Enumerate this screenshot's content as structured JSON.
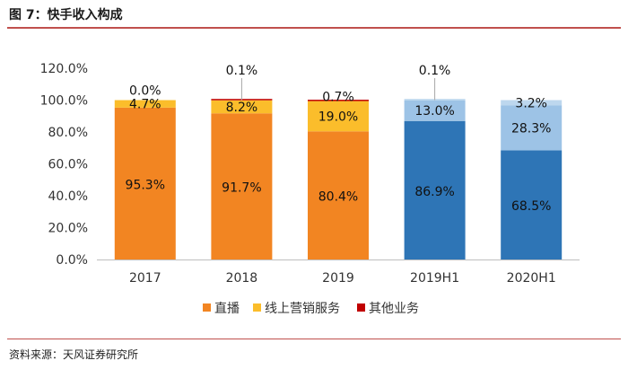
{
  "header": {
    "title": "图 7：快手收入构成"
  },
  "footer": {
    "source": "资料来源：天风证券研究所"
  },
  "chart_data": {
    "type": "bar",
    "stacked": true,
    "title": "图 7：快手收入构成",
    "xlabel": "",
    "ylabel": "",
    "ylim": [
      0,
      120
    ],
    "y_ticks": [
      "0.0%",
      "20.0%",
      "40.0%",
      "60.0%",
      "80.0%",
      "100.0%",
      "120.0%"
    ],
    "categories": [
      "2017",
      "2018",
      "2019",
      "2019H1",
      "2020H1"
    ],
    "series": [
      {
        "name": "直播",
        "values": [
          95.3,
          91.7,
          80.4,
          86.9,
          68.5
        ],
        "labels": [
          "95.3%",
          "91.7%",
          "80.4%",
          "86.9%",
          "68.5%"
        ]
      },
      {
        "name": "线上营销服务",
        "values": [
          4.7,
          8.2,
          19.0,
          13.0,
          28.3
        ],
        "labels": [
          "4.7%",
          "8.2%",
          "19.0%",
          "13.0%",
          "28.3%"
        ]
      },
      {
        "name": "其他业务",
        "values": [
          0.0,
          0.1,
          0.7,
          0.1,
          3.2
        ],
        "labels": [
          "0.0%",
          "0.1%",
          "0.7%",
          "0.1%",
          "3.2%"
        ]
      }
    ],
    "colors": {
      "直播_early": "#f28522",
      "直播_h1": "#2e75b6",
      "线上营销服务_early": "#fbbd2b",
      "线上营销服务_h1": "#9dc3e6",
      "其他业务_early": "#c00000",
      "其他业务_h1": "#bdd7ee"
    },
    "legend": {
      "position": "bottom",
      "items": [
        {
          "name": "直播",
          "color": "#f28522"
        },
        {
          "name": "线上营销服务",
          "color": "#fbbd2b"
        },
        {
          "name": "其他业务",
          "color": "#c00000"
        }
      ]
    },
    "grid": false
  }
}
